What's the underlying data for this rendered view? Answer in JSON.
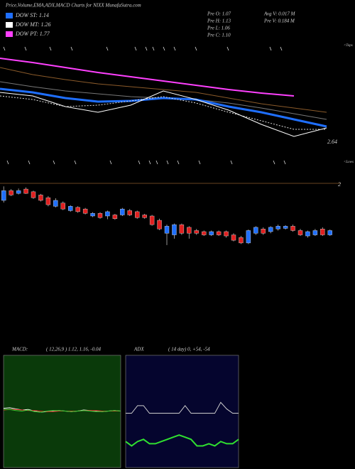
{
  "header": {
    "title": "Price,Volume,EMA,ADX,MACD Charts for NIXX  MunafaSutra.com",
    "legend": [
      {
        "label": "DOW ST: 1.14",
        "color": "#1f6fff"
      },
      {
        "label": "DOW MT: 1.26",
        "color": "#ffffff"
      },
      {
        "label": "DOW PT: 1.77",
        "color": "#ff40ff"
      }
    ],
    "prev": [
      "Pre  O: 1.07",
      "Pre  H: 1.13",
      "Pre  L: 1.06",
      "Pre  C: 1.10"
    ],
    "volume": [
      "Avg V: 0.017 M",
      "Pre  V: 0.184  M"
    ]
  },
  "chart_data": [
    {
      "type": "line",
      "annotations": [
        "<Tops",
        "<Lows"
      ],
      "x": [
        0,
        1,
        2,
        3,
        4,
        5,
        6,
        7,
        8,
        9,
        10
      ],
      "xlim": [
        0,
        10
      ],
      "ylim": [
        2.2,
        4.0
      ],
      "yticks": [
        2.64
      ],
      "series": [
        {
          "color": "#ff40ff",
          "width": 2,
          "values": [
            3.78,
            3.72,
            3.65,
            3.58,
            3.52,
            3.46,
            3.4,
            3.34,
            3.29,
            3.25,
            null
          ]
        },
        {
          "color": "#8a5a2a",
          "width": 1,
          "values": [
            3.65,
            3.55,
            3.48,
            3.42,
            3.38,
            3.34,
            3.3,
            3.22,
            3.14,
            3.08,
            3.02
          ]
        },
        {
          "color": "#777777",
          "width": 1,
          "values": [
            3.45,
            3.38,
            3.32,
            3.28,
            3.24,
            3.22,
            3.2,
            3.15,
            3.08,
            3.0,
            2.92
          ]
        },
        {
          "color": "#1f6fff",
          "width": 3,
          "values": [
            3.35,
            3.3,
            3.22,
            3.17,
            3.18,
            3.22,
            3.2,
            3.1,
            3.02,
            2.92,
            2.82
          ]
        },
        {
          "color": "#ffffff",
          "width": 1,
          "values": [
            3.3,
            3.25,
            3.1,
            3.02,
            3.12,
            3.32,
            3.2,
            3.05,
            2.85,
            2.68,
            2.8
          ]
        },
        {
          "color": "#dddddd",
          "width": 1,
          "style": "dashed",
          "values": [
            3.25,
            3.2,
            3.1,
            3.12,
            3.18,
            3.24,
            3.15,
            3.02,
            2.9,
            2.78,
            2.78
          ]
        }
      ]
    },
    {
      "type": "candlestick",
      "ylim": [
        0.8,
        2.0
      ],
      "yticks": [
        2
      ],
      "up_color": "#1f6fff",
      "down_color": "#e02020",
      "grid_color": "#8a5a2a",
      "open": [
        1.71,
        1.89,
        1.84,
        1.92,
        1.87,
        1.81,
        1.76,
        1.6,
        1.66,
        1.52,
        1.58,
        1.55,
        1.42,
        1.47,
        1.42,
        1.44,
        1.44,
        1.52,
        1.5,
        1.44,
        1.42,
        1.34,
        1.1,
        1.07,
        1.26,
        1.21,
        1.15,
        1.13,
        1.07,
        1.13,
        1.13,
        1.07,
        1.02,
        0.92,
        1.1,
        1.18,
        1.13,
        1.18,
        1.19,
        1.23,
        1.15,
        1.05,
        1.07,
        1.18,
        1.07
      ],
      "high": [
        1.97,
        1.92,
        1.93,
        1.95,
        1.89,
        1.83,
        1.79,
        1.75,
        1.69,
        1.62,
        1.6,
        1.57,
        1.49,
        1.49,
        1.52,
        1.46,
        1.57,
        1.55,
        1.52,
        1.46,
        1.44,
        1.37,
        1.26,
        1.28,
        1.28,
        1.23,
        1.18,
        1.15,
        1.15,
        1.15,
        1.15,
        1.1,
        1.05,
        1.17,
        1.23,
        1.21,
        1.23,
        1.26,
        1.25,
        1.26,
        1.18,
        1.15,
        1.18,
        1.21,
        1.17
      ],
      "low": [
        1.67,
        1.79,
        1.82,
        1.83,
        1.74,
        1.69,
        1.6,
        1.58,
        1.53,
        1.5,
        1.48,
        1.45,
        1.4,
        1.37,
        1.36,
        1.35,
        1.42,
        1.42,
        1.37,
        1.37,
        1.24,
        1.16,
        0.88,
        1.0,
        1.07,
        1.0,
        1.07,
        1.05,
        1.05,
        1.05,
        1.02,
        0.95,
        0.9,
        0.9,
        1.07,
        1.07,
        1.1,
        1.15,
        1.17,
        1.13,
        1.05,
        1.02,
        1.05,
        1.05,
        1.05
      ],
      "close": [
        1.89,
        1.81,
        1.89,
        1.84,
        1.76,
        1.71,
        1.63,
        1.71,
        1.55,
        1.6,
        1.5,
        1.47,
        1.47,
        1.39,
        1.5,
        1.37,
        1.55,
        1.44,
        1.39,
        1.39,
        1.26,
        1.18,
        1.23,
        1.26,
        1.1,
        1.1,
        1.1,
        1.07,
        1.13,
        1.07,
        1.05,
        0.97,
        0.92,
        1.15,
        1.21,
        1.1,
        1.21,
        1.23,
        1.23,
        1.15,
        1.07,
        1.13,
        1.15,
        1.07,
        1.15
      ]
    },
    {
      "type": "line",
      "title": "MACD:",
      "subtitle": "( 12,26,9 ) 1.12,  1.16,  -0.04",
      "background": "#0a3a0a",
      "x": [
        0,
        1,
        2,
        3,
        4,
        5,
        6,
        7,
        8,
        9,
        10,
        11,
        12,
        13,
        14,
        15,
        16,
        17,
        18,
        19
      ],
      "xlim": [
        0,
        19
      ],
      "ylim": [
        -1,
        1
      ],
      "series": [
        {
          "color": "#ffffff",
          "width": 1,
          "values": [
            0.05,
            0.06,
            0.04,
            0.02,
            0.03,
            0.0,
            -0.02,
            -0.01,
            0.0,
            0.01,
            0.0,
            -0.01,
            0.0,
            0.02,
            0.01,
            0.0,
            -0.01,
            0.0,
            0.01,
            0.0
          ]
        },
        {
          "color": "#e02020",
          "width": 1,
          "values": [
            0.02,
            0.03,
            0.03,
            0.02,
            0.01,
            0.01,
            0.0,
            -0.01,
            -0.01,
            0.0,
            0.0,
            0.0,
            0.0,
            0.01,
            0.01,
            0.01,
            0.0,
            0.0,
            0.0,
            0.0
          ]
        },
        {
          "color": "#30d030",
          "width": 1,
          "values": [
            0.03,
            0.03,
            0.01,
            0.0,
            0.02,
            -0.01,
            -0.02,
            0.0,
            0.01,
            0.01,
            0.0,
            -0.01,
            0.0,
            0.01,
            0.0,
            -0.01,
            -0.01,
            0.0,
            0.01,
            0.0
          ]
        }
      ]
    },
    {
      "type": "line",
      "title": "ADX",
      "subtitle": "( 14  day) 0,  +54,  -54",
      "background": "#05052e",
      "x": [
        0,
        1,
        2,
        3,
        4,
        5,
        6,
        7,
        8,
        9,
        10,
        11,
        12,
        13,
        14,
        15,
        16,
        17,
        18,
        19
      ],
      "xlim": [
        0,
        19
      ],
      "ylim": [
        0,
        100
      ],
      "series": [
        {
          "color": "#cccccc",
          "width": 1,
          "values": [
            48,
            48,
            55,
            55,
            48,
            48,
            48,
            48,
            48,
            48,
            55,
            48,
            48,
            48,
            48,
            48,
            58,
            52,
            48,
            48
          ]
        },
        {
          "color": "#30e030",
          "width": 2,
          "values": [
            22,
            18,
            22,
            24,
            20,
            20,
            22,
            24,
            26,
            28,
            26,
            24,
            18,
            18,
            20,
            18,
            22,
            20,
            20,
            24
          ]
        }
      ]
    }
  ]
}
